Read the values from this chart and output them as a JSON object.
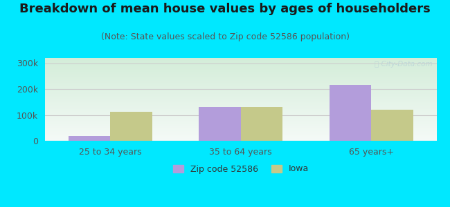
{
  "title": "Breakdown of mean house values by ages of householders",
  "subtitle": "(Note: State values scaled to Zip code 52586 population)",
  "categories": [
    "25 to 34 years",
    "35 to 64 years",
    "65 years+"
  ],
  "zip_values": [
    20000,
    130000,
    215000
  ],
  "iowa_values": [
    113000,
    130000,
    120000
  ],
  "zip_color": "#b39ddb",
  "iowa_color": "#c5c98a",
  "background_outer": "#00e8ff",
  "ylim": [
    0,
    320000
  ],
  "yticks": [
    0,
    100000,
    200000,
    300000
  ],
  "ytick_labels": [
    "0",
    "100k",
    "200k",
    "300k"
  ],
  "legend_labels": [
    "Zip code 52586",
    "Iowa"
  ],
  "bar_width": 0.32,
  "title_fontsize": 13,
  "subtitle_fontsize": 9,
  "grid_color": "#cccccc",
  "watermark_color": "#c0d8d8"
}
